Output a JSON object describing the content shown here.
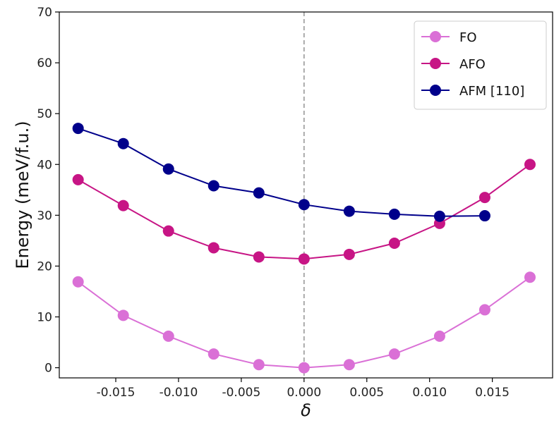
{
  "chart_data": {
    "type": "line",
    "xlabel": "δ",
    "ylabel": "Energy (meV/f.u.)",
    "xlim": [
      -0.0195,
      0.0198
    ],
    "ylim": [
      -2,
      70
    ],
    "xticks": [
      -0.015,
      -0.01,
      -0.005,
      0.0,
      0.005,
      0.01,
      0.015
    ],
    "xtick_labels": [
      "-0.015",
      "-0.010",
      "-0.005",
      "0.000",
      "0.005",
      "0.010",
      "0.015"
    ],
    "yticks": [
      0,
      10,
      20,
      30,
      40,
      50,
      60,
      70
    ],
    "ytick_labels": [
      "0",
      "10",
      "20",
      "30",
      "40",
      "50",
      "60",
      "70"
    ],
    "reference_line_x": 0.0,
    "grid": false,
    "legend_position": "top-right",
    "series": [
      {
        "name": "FO",
        "color": "#DA70D6",
        "x": [
          -0.018,
          -0.0144,
          -0.0108,
          -0.0072,
          -0.0036,
          0.0,
          0.0036,
          0.0072,
          0.0108,
          0.0144,
          0.018
        ],
        "y": [
          16.9,
          10.3,
          6.2,
          2.7,
          0.6,
          0.0,
          0.6,
          2.7,
          6.2,
          11.4,
          17.8
        ]
      },
      {
        "name": "AFO",
        "color": "#C71585",
        "x": [
          -0.018,
          -0.0144,
          -0.0108,
          -0.0072,
          -0.0036,
          0.0,
          0.0036,
          0.0072,
          0.0108,
          0.0144,
          0.018
        ],
        "y": [
          37.0,
          31.9,
          26.9,
          23.6,
          21.8,
          21.4,
          22.3,
          24.5,
          28.4,
          33.5,
          40.0
        ]
      },
      {
        "name": "AFM [110]",
        "color": "#00008B",
        "x": [
          -0.018,
          -0.0144,
          -0.0108,
          -0.0072,
          -0.0036,
          0.0,
          0.0036,
          0.0072,
          0.0108,
          0.0144
        ],
        "y": [
          47.1,
          44.1,
          39.1,
          35.8,
          34.4,
          32.1,
          30.8,
          30.2,
          29.8,
          29.9
        ]
      }
    ]
  }
}
